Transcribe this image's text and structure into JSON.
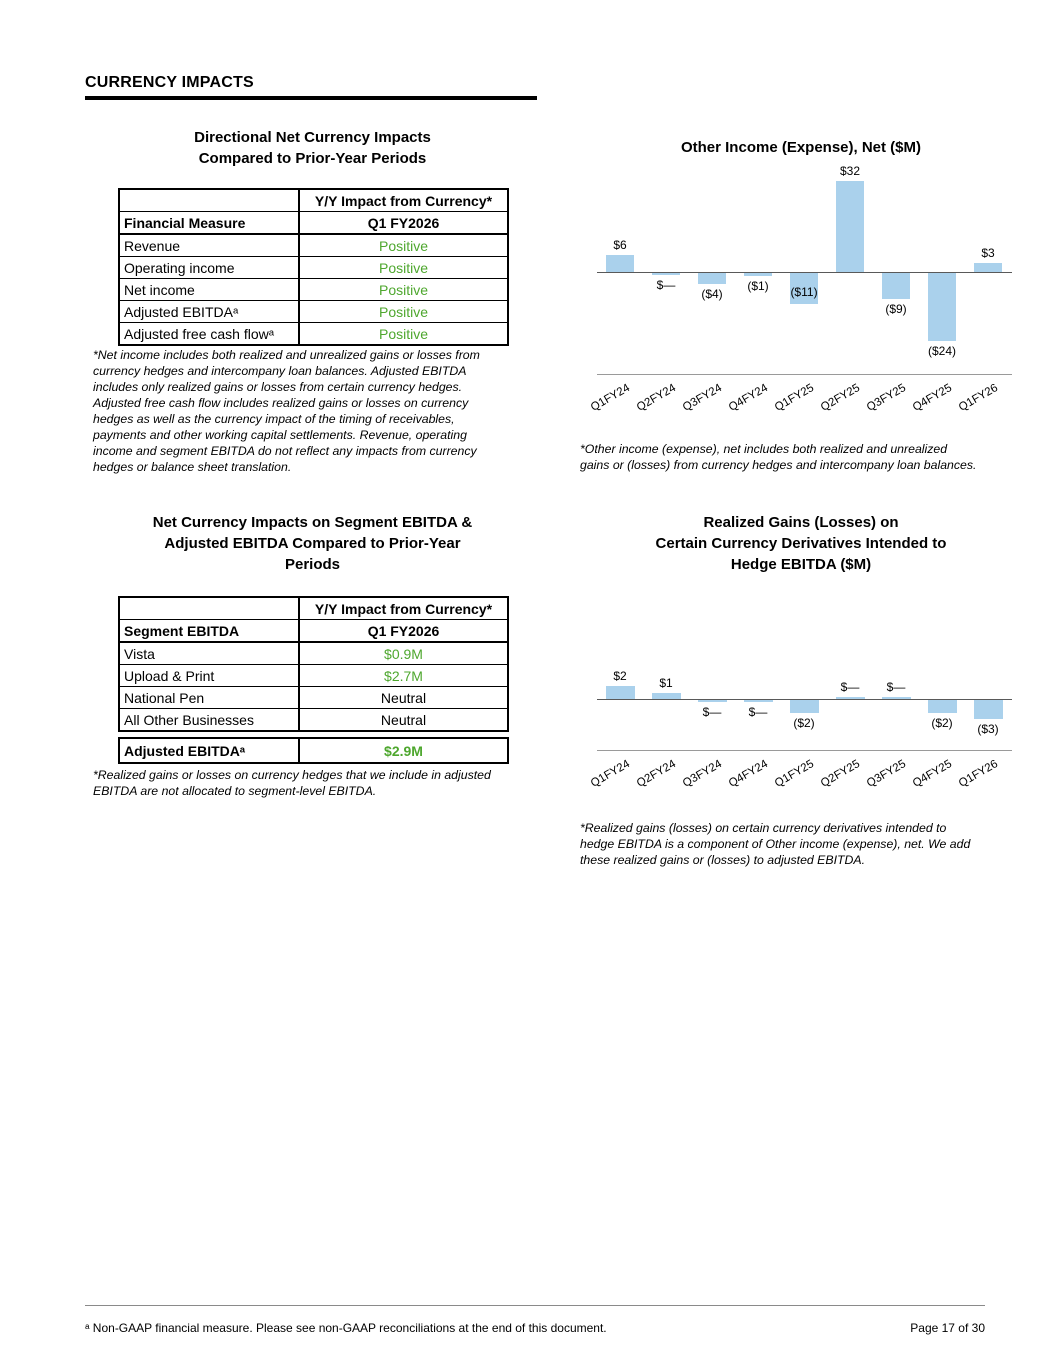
{
  "page": {
    "header": "CURRENCY IMPACTS",
    "footer": {
      "note": "ᵃ Non-GAAP financial measure. Please see non-GAAP reconciliations at the end of this document.",
      "page": "Page 17 of 30"
    }
  },
  "colors": {
    "positive_green": "#4EA72E",
    "bar_blue": "#AAD1EC",
    "axis_gray": "#595959",
    "baseline_gray": "#9A9A9A"
  },
  "left": {
    "table1": {
      "title": "Directional Net Currency Impacts\nCompared to Prior-Year Periods",
      "col_header": "Y/Y Impact from Currency*",
      "row_header": [
        "Financial Measure",
        "Q1 FY2026"
      ],
      "rows": [
        {
          "label": "Revenue",
          "value": "Positive",
          "green": true
        },
        {
          "label": "Operating income",
          "value": "Positive",
          "green": true
        },
        {
          "label": "Net income",
          "value": "Positive",
          "green": true
        },
        {
          "label": "Adjusted EBITDAᵃ",
          "value": "Positive",
          "green": true
        },
        {
          "label": "Adjusted free cash flowᵃ",
          "value": "Positive",
          "green": true
        }
      ],
      "footnote": "*Net income includes both realized and unrealized gains or losses from\ncurrency hedges and intercompany loan balances. Adjusted EBITDA\nincludes only realized gains or losses from certain currency hedges.\nAdjusted free cash flow includes realized gains or losses on currency\nhedges as well as the currency impact of the timing of receivables,\npayments and other working capital settlements. Revenue, operating\nincome and segment EBITDA do not reflect any impacts from currency\nhedges or balance sheet translation."
    },
    "table2": {
      "title": "Net Currency Impacts on Segment EBITDA &\nAdjusted EBITDA Compared to Prior-Year\nPeriods",
      "col_header": "Y/Y Impact from Currency*",
      "row_header": [
        "Segment EBITDA",
        "Q1 FY2026"
      ],
      "rows": [
        {
          "label": "Vista",
          "value": "$0.9M",
          "green": true
        },
        {
          "label": "Upload & Print",
          "value": "$2.7M",
          "green": true
        },
        {
          "label": "National Pen",
          "value": "Neutral",
          "green": false
        },
        {
          "label": "All Other Businesses",
          "value": "Neutral",
          "green": false
        }
      ],
      "total_row": {
        "label": "Adjusted EBITDAᵃ",
        "value": "$2.9M",
        "green": true
      },
      "footnote": "*Realized gains or losses on currency hedges that we include in adjusted\nEBITDA are not allocated to segment-level EBITDA."
    }
  },
  "chart_data": [
    {
      "type": "bar",
      "title": "Other Income (Expense), Net ($M)",
      "categories": [
        "Q1FY24",
        "Q2FY24",
        "Q3FY24",
        "Q4FY24",
        "Q1FY25",
        "Q2FY25",
        "Q3FY25",
        "Q4FY25",
        "Q1FY26"
      ],
      "values": [
        6,
        0,
        -4,
        -1,
        -11,
        32,
        -9,
        -24,
        3
      ],
      "labels": [
        "$6",
        "$—",
        "($4)",
        "($1)",
        "($11)",
        "$32",
        "($9)",
        "($24)",
        "$3"
      ],
      "zero_side": [
        1,
        -1,
        -1,
        -1,
        -1,
        1,
        -1,
        -1,
        1
      ],
      "label_inside": [
        false,
        false,
        false,
        false,
        true,
        false,
        false,
        false,
        false
      ],
      "ylim": [
        -26,
        34
      ],
      "grid": false,
      "legend": "none",
      "bar_color": "#AAD1EC",
      "footnote": "*Other income (expense), net includes both realized and unrealized\ngains or (losses) from currency hedges and intercompany loan balances."
    },
    {
      "type": "bar",
      "title": "Realized Gains (Losses) on\nCertain Currency Derivatives Intended to\nHedge EBITDA ($M)",
      "categories": [
        "Q1FY24",
        "Q2FY24",
        "Q3FY24",
        "Q4FY24",
        "Q1FY25",
        "Q2FY25",
        "Q3FY25",
        "Q4FY25",
        "Q1FY26"
      ],
      "values": [
        2,
        1,
        0,
        0,
        -2,
        0,
        0,
        -2,
        -3
      ],
      "labels": [
        "$2",
        "$1",
        "$—",
        "$—",
        "($2)",
        "$—",
        "$—",
        "($2)",
        "($3)"
      ],
      "zero_side": [
        1,
        1,
        -1,
        -1,
        -1,
        1,
        1,
        -1,
        -1
      ],
      "label_inside": [
        false,
        false,
        false,
        false,
        false,
        false,
        false,
        false,
        false
      ],
      "ylim": [
        -4,
        3
      ],
      "grid": false,
      "legend": "none",
      "bar_color": "#AAD1EC",
      "footnote": "*Realized gains (losses) on certain currency derivatives intended to\nhedge EBITDA is a component of Other income (expense), net. We add\nthese realized gains or (losses) to adjusted EBITDA."
    }
  ]
}
